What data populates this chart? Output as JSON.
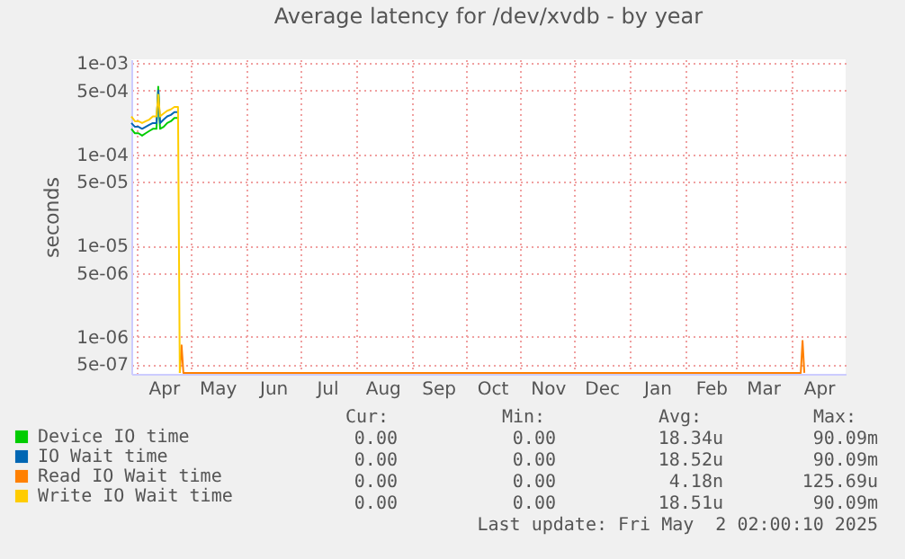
{
  "chart_data": {
    "type": "line",
    "title": "Average latency for /dev/xvdb - by year",
    "ylabel": "seconds",
    "log": true,
    "grid": true,
    "legend": "bottom",
    "marker": "none",
    "line_style": "solid",
    "xlim": [
      "2024-03-29",
      "2025-05-01"
    ],
    "xticks": [
      {
        "value": "2024-04-01",
        "label": null
      },
      {
        "value": "2024-04-16",
        "label": "Apr"
      },
      {
        "value": "2024-05-01",
        "label": null
      },
      {
        "value": "2024-05-16",
        "label": "May"
      },
      {
        "value": "2024-06-01",
        "label": null
      },
      {
        "value": "2024-06-16",
        "label": "Jun"
      },
      {
        "value": "2024-07-01",
        "label": null
      },
      {
        "value": "2024-07-16",
        "label": "Jul"
      },
      {
        "value": "2024-08-01",
        "label": null
      },
      {
        "value": "2024-08-16",
        "label": "Aug"
      },
      {
        "value": "2024-09-01",
        "label": null
      },
      {
        "value": "2024-09-16",
        "label": "Sep"
      },
      {
        "value": "2024-10-01",
        "label": null
      },
      {
        "value": "2024-10-16",
        "label": "Oct"
      },
      {
        "value": "2024-11-01",
        "label": null
      },
      {
        "value": "2024-11-16",
        "label": "Nov"
      },
      {
        "value": "2024-12-01",
        "label": null
      },
      {
        "value": "2024-12-16",
        "label": "Dec"
      },
      {
        "value": "2025-01-01",
        "label": null
      },
      {
        "value": "2025-01-16",
        "label": "Jan"
      },
      {
        "value": "2025-02-01",
        "label": null
      },
      {
        "value": "2025-02-15",
        "label": "Feb"
      },
      {
        "value": "2025-03-01",
        "label": null
      },
      {
        "value": "2025-03-16",
        "label": "Mar"
      },
      {
        "value": "2025-04-01",
        "label": null
      },
      {
        "value": "2025-04-16",
        "label": "Apr"
      }
    ],
    "ylim": [
      3.9e-07,
      0.0011
    ],
    "yticks": [
      {
        "value": 5e-07,
        "label": "5e-07"
      },
      {
        "value": 1e-06,
        "label": "1e-06"
      },
      {
        "value": 5e-06,
        "label": "5e-06"
      },
      {
        "value": 1e-05,
        "label": "1e-05"
      },
      {
        "value": 5e-05,
        "label": "5e-05"
      },
      {
        "value": 0.0001,
        "label": "1e-04"
      },
      {
        "value": 0.0005,
        "label": "5e-04"
      },
      {
        "value": 0.001,
        "label": "1e-03"
      }
    ],
    "series": [
      {
        "name": "Device IO time",
        "color": "#00cc00",
        "x": [
          "2024-03-29",
          "2024-03-31",
          "2024-04-02",
          "2024-04-04",
          "2024-04-06",
          "2024-04-08",
          "2024-04-10",
          "2024-04-12",
          "2024-04-13",
          "2024-04-14",
          "2024-04-16",
          "2024-04-18",
          "2024-04-20",
          "2024-04-22",
          "2024-04-24"
        ],
        "values": [
          0.00019,
          0.00017,
          0.00017,
          0.00016,
          0.00017,
          0.00018,
          0.00019,
          0.00019,
          0.00055,
          0.00019,
          0.0002,
          0.00022,
          0.00023,
          0.00025,
          0.00025
        ]
      },
      {
        "name": "IO Wait time",
        "color": "#0066b3",
        "x": [
          "2024-03-29",
          "2024-03-31",
          "2024-04-02",
          "2024-04-04",
          "2024-04-06",
          "2024-04-08",
          "2024-04-10",
          "2024-04-12",
          "2024-04-13",
          "2024-04-14",
          "2024-04-16",
          "2024-04-18",
          "2024-04-20",
          "2024-04-22",
          "2024-04-24"
        ],
        "values": [
          0.00022,
          0.0002,
          0.0002,
          0.00019,
          0.0002,
          0.00021,
          0.00022,
          0.00022,
          0.0005,
          0.00022,
          0.00024,
          0.00026,
          0.00027,
          0.00029,
          0.00029
        ]
      },
      {
        "name": "Read IO Wait time",
        "color": "#ff8000",
        "x": [
          "2024-04-25",
          "2024-04-26",
          "2024-04-27",
          "2025-04-06",
          "2025-04-07",
          "2025-04-08"
        ],
        "values": [
          4e-07,
          8e-07,
          4e-07,
          4e-07,
          9e-07,
          4e-07
        ]
      },
      {
        "name": "Write IO Wait time",
        "color": "#ffcc00",
        "x": [
          "2024-03-29",
          "2024-03-31",
          "2024-04-02",
          "2024-04-04",
          "2024-04-06",
          "2024-04-08",
          "2024-04-10",
          "2024-04-12",
          "2024-04-13",
          "2024-04-14",
          "2024-04-16",
          "2024-04-18",
          "2024-04-20",
          "2024-04-22",
          "2024-04-24",
          "2024-04-25"
        ],
        "values": [
          0.00026,
          0.00023,
          0.00023,
          0.00022,
          0.00023,
          0.00024,
          0.00026,
          0.00026,
          0.00045,
          0.00026,
          0.00028,
          0.0003,
          0.00031,
          0.00033,
          0.00033,
          4e-07
        ]
      }
    ],
    "annotations": [
      "Cur:",
      "Min:",
      "Avg:",
      "Max:",
      "0.00",
      "0.00",
      "18.34u",
      "90.09m",
      "0.00",
      "0.00",
      "18.52u",
      "90.09m",
      "0.00",
      "0.00",
      "4.18n",
      "125.69u",
      "0.00",
      "0.00",
      "18.51u",
      "90.09m",
      "Last update: Fri May  2 02:00:10 2025"
    ]
  }
}
